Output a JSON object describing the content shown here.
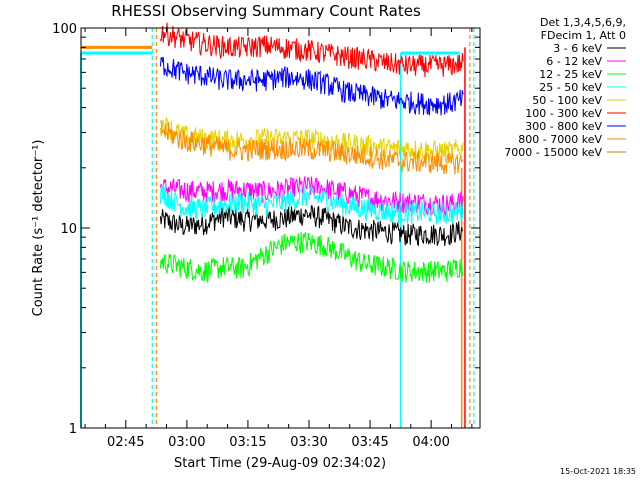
{
  "chart_data": {
    "type": "line",
    "title": "RHESSI Observing Summary Count Rates",
    "xlabel": "Start Time (29-Aug-09 02:34:02)",
    "ylabel": "Count Rate (s⁻¹ detector⁻¹)",
    "y_scale": "log",
    "ylim": [
      1,
      100
    ],
    "xlim_minutes": [
      0,
      98
    ],
    "x_ticks": [
      {
        "label": "02:45",
        "minute": 11
      },
      {
        "label": "03:00",
        "minute": 26
      },
      {
        "label": "03:15",
        "minute": 41
      },
      {
        "label": "03:30",
        "minute": 56
      },
      {
        "label": "03:45",
        "minute": 71
      },
      {
        "label": "04:00",
        "minute": 86
      }
    ],
    "y_ticks": [
      {
        "label": "100",
        "value": 100
      },
      {
        "label": "10",
        "value": 10
      },
      {
        "label": "1",
        "value": 1
      }
    ],
    "legend_header": [
      "Det 1,3,4,5,6,9,",
      "FDecim 1, Att 0"
    ],
    "legend_position": "right",
    "data_start_minute": 19,
    "data_end_minute": 95,
    "series": [
      {
        "name": "3 - 6 keV",
        "color": "#000000",
        "values": [
          [
            20,
            11
          ],
          [
            25,
            10.2
          ],
          [
            30,
            10.5
          ],
          [
            35,
            11.5
          ],
          [
            40,
            11
          ],
          [
            45,
            11
          ],
          [
            50,
            11.2
          ],
          [
            55,
            11.8
          ],
          [
            60,
            11.2
          ],
          [
            65,
            10.2
          ],
          [
            70,
            9.8
          ],
          [
            75,
            9.6
          ],
          [
            80,
            9.3
          ],
          [
            85,
            9.4
          ],
          [
            90,
            9.3
          ],
          [
            94,
            9.8
          ]
        ]
      },
      {
        "name": "6 - 12 keV",
        "color": "#ff00ff",
        "values": [
          [
            20,
            16
          ],
          [
            25,
            15.5
          ],
          [
            30,
            15.2
          ],
          [
            35,
            15.6
          ],
          [
            40,
            15.5
          ],
          [
            45,
            15.2
          ],
          [
            50,
            15.6
          ],
          [
            55,
            16.2
          ],
          [
            60,
            15.8
          ],
          [
            65,
            15
          ],
          [
            70,
            14.2
          ],
          [
            75,
            13.8
          ],
          [
            80,
            13.5
          ],
          [
            85,
            13.4
          ],
          [
            90,
            13.2
          ],
          [
            94,
            13.6
          ]
        ]
      },
      {
        "name": "12 - 25 keV",
        "color": "#00ff00",
        "values": [
          [
            20,
            6.8
          ],
          [
            25,
            6.4
          ],
          [
            30,
            6.1
          ],
          [
            35,
            6.4
          ],
          [
            40,
            6.3
          ],
          [
            45,
            7.4
          ],
          [
            50,
            8.4
          ],
          [
            55,
            8.6
          ],
          [
            60,
            8.2
          ],
          [
            65,
            7.3
          ],
          [
            70,
            6.6
          ],
          [
            75,
            6.4
          ],
          [
            80,
            6.1
          ],
          [
            85,
            6.1
          ],
          [
            90,
            6.1
          ],
          [
            94,
            6.6
          ]
        ]
      },
      {
        "name": "25 - 50 keV",
        "color": "#00ffff",
        "values": [
          [
            20,
            15
          ],
          [
            25,
            12.8
          ],
          [
            30,
            12.5
          ],
          [
            35,
            13.2
          ],
          [
            40,
            13.5
          ],
          [
            45,
            13
          ],
          [
            50,
            13.5
          ],
          [
            55,
            14.5
          ],
          [
            60,
            14
          ],
          [
            65,
            13
          ],
          [
            70,
            12.5
          ],
          [
            75,
            12.2
          ],
          [
            80,
            12
          ],
          [
            85,
            12
          ],
          [
            90,
            11.8
          ],
          [
            94,
            12.2
          ]
        ]
      },
      {
        "name": "50 - 100 keV",
        "color": "#e6d200",
        "values": [
          [
            20,
            33
          ],
          [
            25,
            29
          ],
          [
            30,
            28
          ],
          [
            35,
            27.5
          ],
          [
            40,
            27.5
          ],
          [
            45,
            28
          ],
          [
            50,
            28
          ],
          [
            55,
            28
          ],
          [
            60,
            27.5
          ],
          [
            65,
            26.5
          ],
          [
            70,
            26
          ],
          [
            75,
            25
          ],
          [
            80,
            25
          ],
          [
            85,
            24.5
          ],
          [
            90,
            24
          ],
          [
            94,
            25
          ]
        ]
      },
      {
        "name": "100 - 300 keV",
        "color": "#ff0000",
        "values": [
          [
            20,
            96
          ],
          [
            25,
            88
          ],
          [
            30,
            84
          ],
          [
            35,
            81
          ],
          [
            40,
            80
          ],
          [
            45,
            82
          ],
          [
            50,
            80
          ],
          [
            55,
            78
          ],
          [
            60,
            75
          ],
          [
            65,
            72
          ],
          [
            70,
            70
          ],
          [
            75,
            67
          ],
          [
            80,
            65
          ],
          [
            85,
            65
          ],
          [
            90,
            65
          ],
          [
            94,
            67
          ]
        ]
      },
      {
        "name": "300 - 800 keV",
        "color": "#0000ff",
        "values": [
          [
            20,
            66
          ],
          [
            25,
            60
          ],
          [
            30,
            58
          ],
          [
            35,
            55
          ],
          [
            40,
            55
          ],
          [
            45,
            55
          ],
          [
            50,
            57
          ],
          [
            55,
            56
          ],
          [
            60,
            53
          ],
          [
            65,
            48
          ],
          [
            70,
            46
          ],
          [
            75,
            44
          ],
          [
            80,
            43
          ],
          [
            85,
            42
          ],
          [
            90,
            42
          ],
          [
            94,
            44
          ]
        ]
      },
      {
        "name": "800 - 7000 keV",
        "color": "#ff8c00",
        "values": [
          [
            20,
            31
          ],
          [
            25,
            27.5
          ],
          [
            30,
            26.5
          ],
          [
            35,
            25
          ],
          [
            40,
            24.5
          ],
          [
            45,
            25
          ],
          [
            50,
            25
          ],
          [
            55,
            25
          ],
          [
            60,
            24.5
          ],
          [
            65,
            23.5
          ],
          [
            70,
            23
          ],
          [
            75,
            22
          ],
          [
            80,
            21.5
          ],
          [
            85,
            21.5
          ],
          [
            90,
            21
          ],
          [
            94,
            21.5
          ]
        ]
      },
      {
        "name": "7000 - 15000 keV",
        "color": "#b8860b",
        "values": [
          [
            20,
            0
          ],
          [
            94,
            0
          ]
        ]
      }
    ]
  },
  "footer_timestamp": "15-Oct-2021 18:35"
}
